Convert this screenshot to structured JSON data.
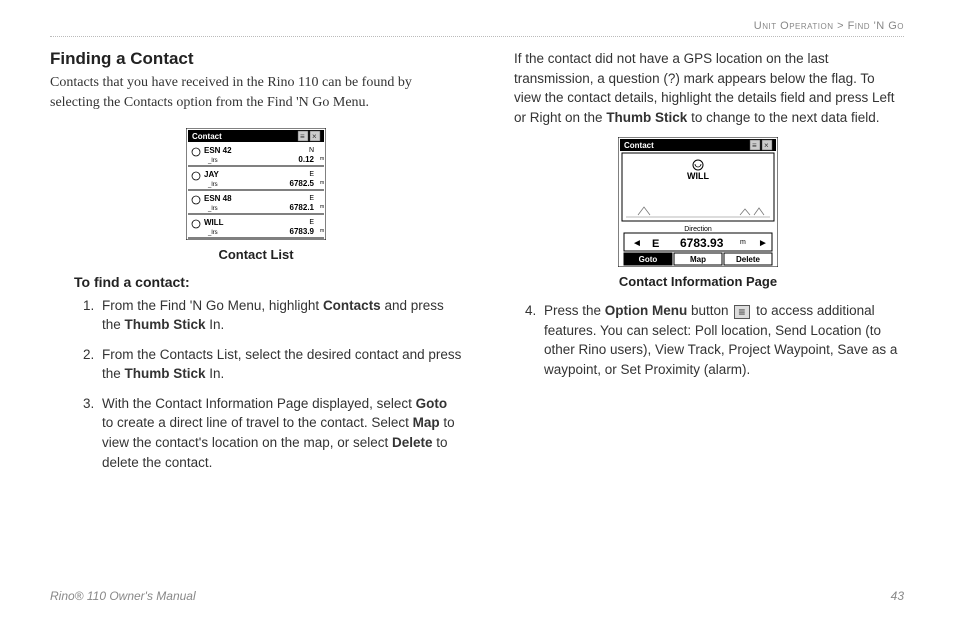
{
  "breadcrumb": {
    "section": "Unit Operation",
    "separator": ">",
    "page": "Find 'N Go"
  },
  "left": {
    "title": "Finding a Contact",
    "intro": "Contacts that you have received in the Rino 110 can be found by selecting the Contacts option from the Find 'N Go Menu.",
    "figure_caption": "Contact List",
    "subhead": "To find a contact:",
    "steps_html": [
      "From the Find 'N Go Menu, highlight <b>Contacts</b> and press the <b>Thumb Stick</b> In.",
      "From the Contacts List, select the desired contact and press the <b>Thumb Stick</b> In.",
      "With the Contact Information Page displayed, select <b>Goto</b> to create a direct line of travel to the contact. Select <b>Map</b> to view the contact's location on the map, or select <b>Delete</b> to delete the contact."
    ],
    "contact_list_screen": {
      "title_bar": "Contact",
      "rows": [
        {
          "name": "ESN 42",
          "sub": "_lrs",
          "dir": "N",
          "dist": "0.12",
          "unit": "m"
        },
        {
          "name": "JAY",
          "sub": "_lrs",
          "dir": "E",
          "dist": "6782.5",
          "unit": "m"
        },
        {
          "name": "ESN 48",
          "sub": "_lrs",
          "dir": "E",
          "dist": "6782.1",
          "unit": "m"
        },
        {
          "name": "WILL",
          "sub": "_lrs",
          "dir": "E",
          "dist": "6783.9",
          "unit": "m"
        }
      ]
    }
  },
  "right": {
    "p1_html": "If the contact did not have a GPS location on the last transmission, a question (?) mark appears below the flag. To view the contact details, highlight the details field and press Left or Right on the <b>Thumb Stick</b> to change to the next data field.",
    "figure_caption": "Contact Information Page",
    "step4_html": "Press the <b>Option Menu</b> button <span class=\"option-icon\" data-name=\"option-menu-icon\" data-interactable=\"false\"></span> to access additional features. You can select: Poll location, Send Location (to other Rino users), View Track, Project Waypoint, Save as a waypoint, or Set Proximity (alarm).",
    "info_screen": {
      "title_bar": "Contact",
      "contact_name": "WILL",
      "direction_label": "Direction",
      "dir": "E",
      "dist": "6783.93",
      "unit": "m",
      "buttons": [
        "Goto",
        "Map",
        "Delete"
      ]
    }
  },
  "footer": {
    "manual": "Rino® 110 Owner's Manual",
    "page": "43"
  }
}
